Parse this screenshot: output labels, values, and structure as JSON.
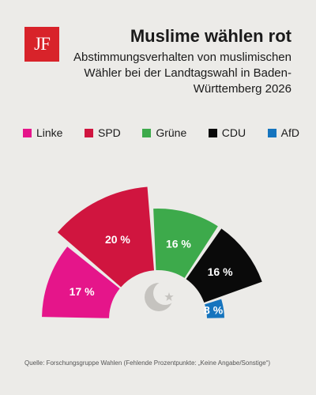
{
  "logo": {
    "text": "JF",
    "color": "#d8232a"
  },
  "header": {
    "title": "Muslime wählen rot",
    "subtitle": "Abstimmungsverhalten von muslimischen Wähler bei der Landtagswahl in Baden-Württemberg 2026"
  },
  "chart_data": {
    "type": "pie",
    "style": "semicircle parliament chart with exploded segments",
    "categories": [
      "Linke",
      "SPD",
      "Grüne",
      "CDU",
      "AfD"
    ],
    "values": [
      17,
      20,
      16,
      16,
      8
    ],
    "labels": [
      "17 %",
      "20 %",
      "16 %",
      "16 %",
      "8 %"
    ],
    "colors": [
      "#e5158a",
      "#d0153f",
      "#3daa4b",
      "#0a0a0a",
      "#1574be"
    ],
    "legend_position": "top",
    "center_icon": "crescent-star-icon"
  },
  "source": "Quelle: Forschungsgruppe Wahlen (Fehlende Prozentpunkte: „Keine Angabe/Sonstige“)"
}
